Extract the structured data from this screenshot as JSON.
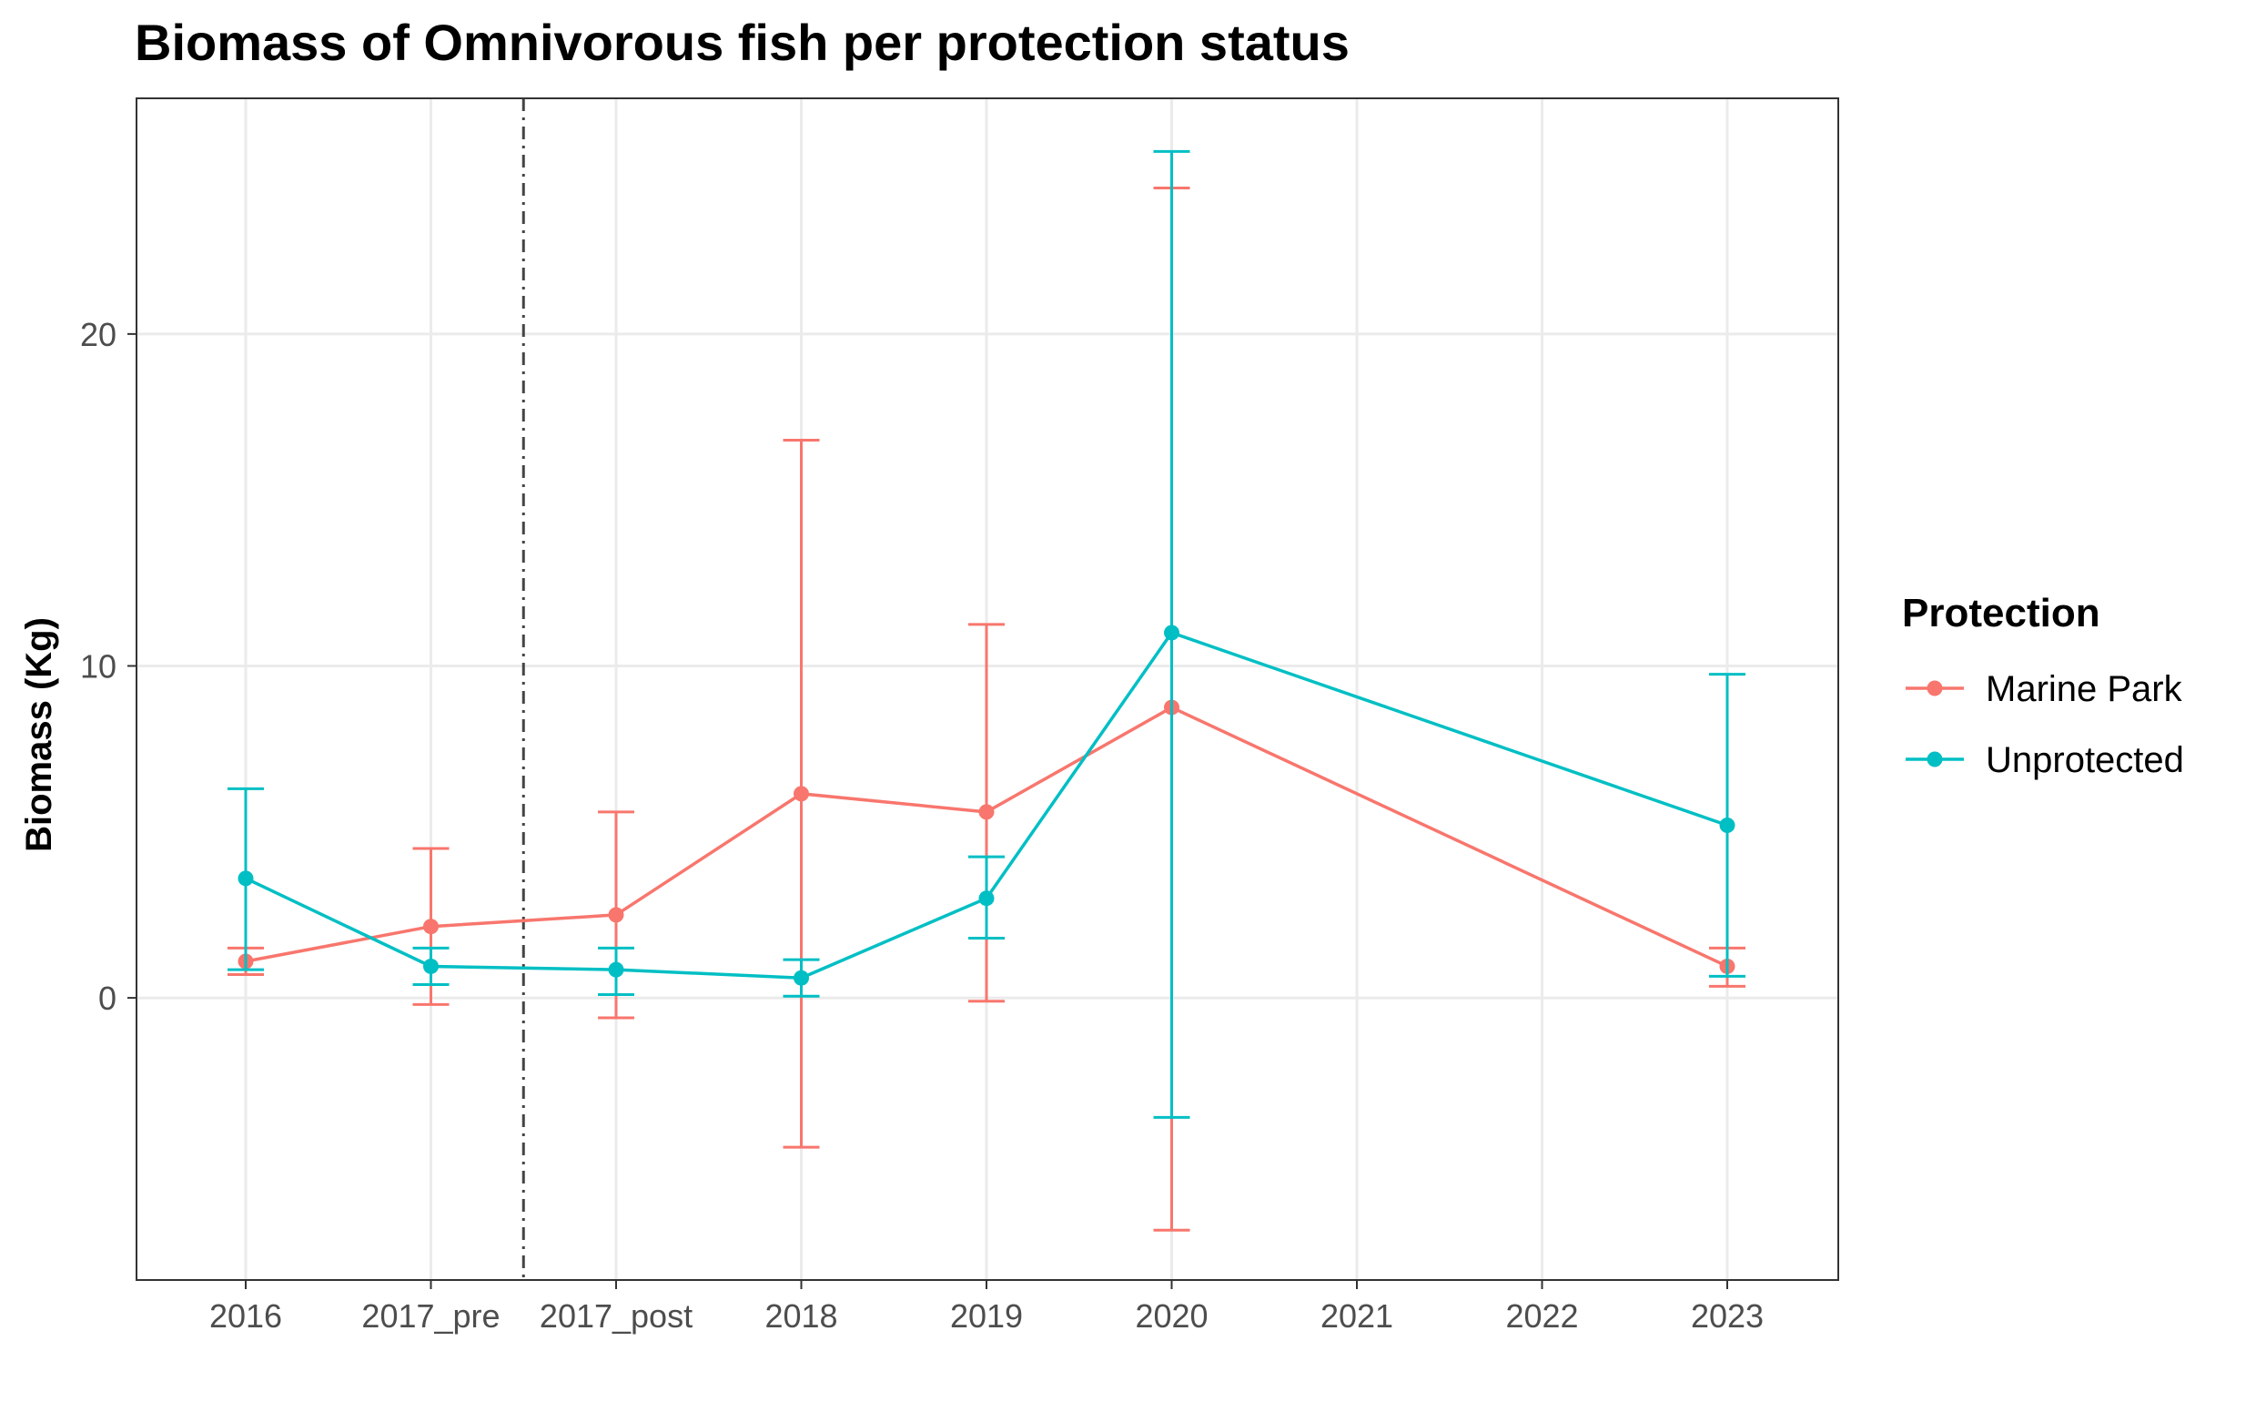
{
  "chart_data": {
    "type": "line",
    "title": "Biomass of Omnivorous fish per protection status",
    "xlabel": "",
    "ylabel": "Biomass (Kg)",
    "categories": [
      "2016",
      "2017_pre",
      "2017_post",
      "2018",
      "2019",
      "2020",
      "2021",
      "2022",
      "2023"
    ],
    "ylim": [
      -8.5,
      27.1
    ],
    "yticks": [
      0,
      10,
      20
    ],
    "grid": true,
    "legend": {
      "title": "Protection",
      "position": "right"
    },
    "vline": {
      "between": [
        "2017_pre",
        "2017_post"
      ],
      "style": "dotdash"
    },
    "series": [
      {
        "name": "Marine Park",
        "color": "#F8766D",
        "points": [
          {
            "x": "2016",
            "y": 1.1,
            "ymin": 0.7,
            "ymax": 1.5
          },
          {
            "x": "2017_pre",
            "y": 2.15,
            "ymin": -0.2,
            "ymax": 4.5
          },
          {
            "x": "2017_post",
            "y": 2.5,
            "ymin": -0.6,
            "ymax": 5.6
          },
          {
            "x": "2018",
            "y": 6.15,
            "ymin": -4.5,
            "ymax": 16.8
          },
          {
            "x": "2019",
            "y": 5.6,
            "ymin": -0.1,
            "ymax": 11.25
          },
          {
            "x": "2020",
            "y": 8.75,
            "ymin": -7.0,
            "ymax": 24.4
          },
          {
            "x": "2023",
            "y": 0.95,
            "ymin": 0.35,
            "ymax": 1.5
          }
        ]
      },
      {
        "name": "Unprotected",
        "color": "#00BFC4",
        "points": [
          {
            "x": "2016",
            "y": 3.6,
            "ymin": 0.85,
            "ymax": 6.3
          },
          {
            "x": "2017_pre",
            "y": 0.95,
            "ymin": 0.4,
            "ymax": 1.5
          },
          {
            "x": "2017_post",
            "y": 0.85,
            "ymin": 0.1,
            "ymax": 1.5
          },
          {
            "x": "2018",
            "y": 0.6,
            "ymin": 0.05,
            "ymax": 1.15
          },
          {
            "x": "2019",
            "y": 3.0,
            "ymin": 1.8,
            "ymax": 4.25
          },
          {
            "x": "2020",
            "y": 11.0,
            "ymin": -3.6,
            "ymax": 25.5
          },
          {
            "x": "2023",
            "y": 5.2,
            "ymin": 0.65,
            "ymax": 9.75
          }
        ]
      }
    ]
  }
}
